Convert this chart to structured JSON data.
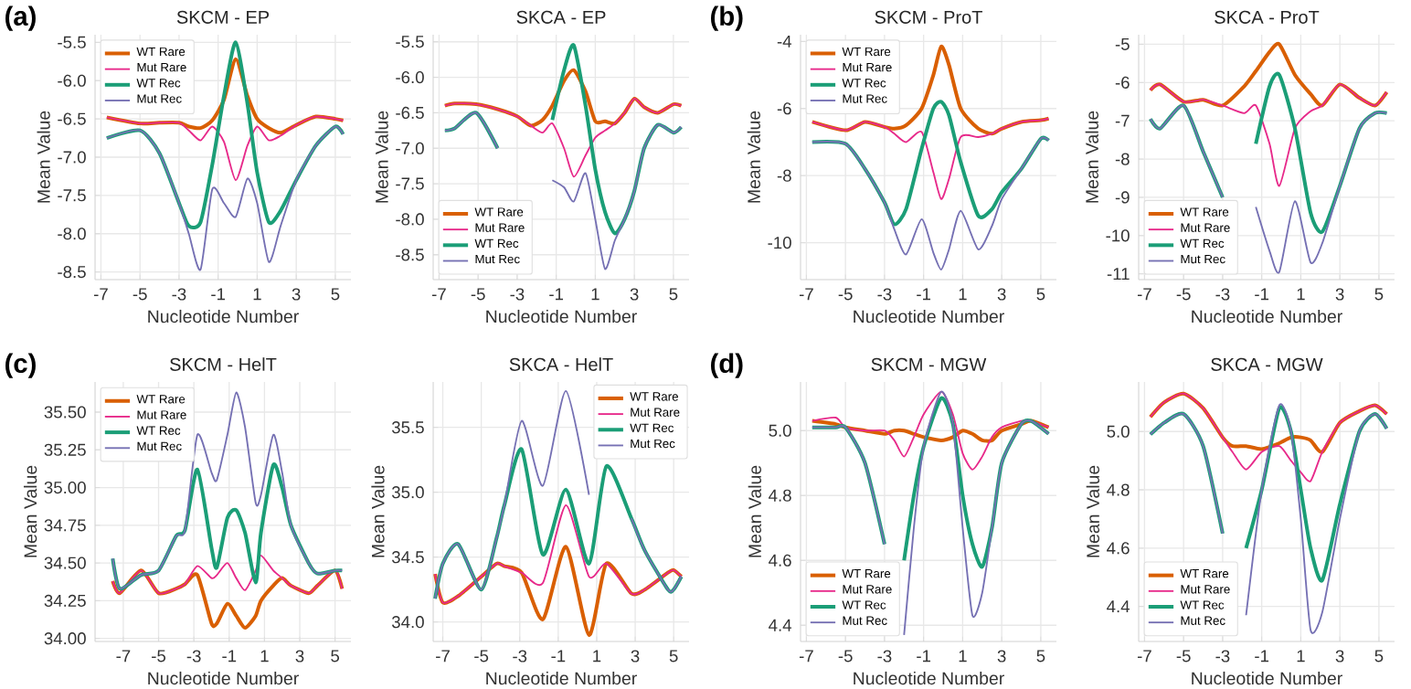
{
  "chart_data": [
    {
      "type": "line",
      "title": "SKCM - EP",
      "xlabel": "Nucleotide Number",
      "ylabel": "Mean Value",
      "annotations": [
        "(a)"
      ],
      "grid": true,
      "legend": "top left",
      "xlim": [
        -7.3,
        5.8
      ],
      "ylim": [
        -8.6,
        -5.4
      ],
      "xticks": [
        -7,
        -5,
        -3,
        -1,
        1,
        3,
        5
      ],
      "yticks": [
        -5.5,
        {
          "value": -6,
          "label": "-6.0"
        },
        -6.5,
        {
          "value": -7,
          "label": "-7.0"
        },
        -7.5,
        {
          "value": -8,
          "label": "-8.0"
        },
        -8.5
      ],
      "x": [
        -6.7,
        -5,
        -4,
        -3,
        -2.5,
        -1.9,
        -1.3,
        -0.7,
        -0.1,
        0.5,
        1,
        1.6,
        2.2,
        3,
        4,
        5,
        5.4
      ],
      "series": [
        {
          "name": "WT Rare",
          "color": "#d95f02",
          "values": [
            -6.48,
            -6.56,
            -6.55,
            -6.55,
            -6.6,
            -6.62,
            -6.52,
            -6.25,
            -5.72,
            -6.2,
            -6.5,
            -6.62,
            -6.68,
            -6.58,
            -6.47,
            -6.5,
            -6.52
          ]
        },
        {
          "name": "Mut Rare",
          "color": "#e7298a",
          "values": [
            -6.48,
            -6.56,
            -6.55,
            -6.55,
            -6.65,
            -6.78,
            -6.6,
            -6.8,
            -7.3,
            -6.85,
            -6.6,
            -6.78,
            -6.72,
            -6.58,
            -6.47,
            -6.5,
            -6.52
          ]
        },
        {
          "name": "WT Rec",
          "color": "#1b9e77",
          "values": [
            -6.75,
            -6.65,
            -6.95,
            -7.6,
            -7.9,
            -7.85,
            -7.1,
            -6.2,
            -5.5,
            -6.3,
            -7.2,
            -7.85,
            -7.7,
            -7.3,
            -6.85,
            -6.6,
            -6.7
          ]
        },
        {
          "name": "Mut Rec",
          "color": "#7570b3",
          "values": [
            -6.75,
            -6.65,
            -6.95,
            -7.6,
            -8.0,
            -8.47,
            -7.42,
            -7.6,
            -7.78,
            -7.28,
            -7.6,
            -8.37,
            -7.9,
            -7.3,
            -6.85,
            -6.6,
            -6.7
          ]
        }
      ]
    },
    {
      "type": "line",
      "title": "SKCA - EP",
      "xlabel": "Nucleotide Number",
      "ylabel": "Mean Value",
      "grid": true,
      "legend": "bottom left",
      "xlim": [
        -7.3,
        5.8
      ],
      "ylim": [
        -8.85,
        -5.4
      ],
      "xticks": [
        -7,
        -5,
        -3,
        -1,
        1,
        3,
        5
      ],
      "yticks": [
        -5.5,
        {
          "value": -6,
          "label": "-6.0"
        },
        -6.5,
        {
          "value": -7,
          "label": "-7.0"
        },
        -7.5,
        {
          "value": -8,
          "label": "-8.0"
        },
        -8.5
      ],
      "x": [
        -6.7,
        -6.2,
        -5.1,
        -4,
        -3,
        -2.3,
        -1.7,
        -1.2,
        -0.6,
        -0.1,
        0.5,
        1,
        1.5,
        2,
        2.5,
        3,
        3.5,
        4.2,
        5,
        5.4
      ],
      "series": [
        {
          "name": "WT Rare",
          "color": "#d95f02",
          "values": [
            -6.4,
            -6.37,
            -6.38,
            -6.45,
            -6.55,
            -6.68,
            -6.6,
            -6.4,
            -6.05,
            -5.9,
            -6.2,
            -6.62,
            -6.62,
            -6.65,
            -6.5,
            -6.3,
            -6.42,
            -6.5,
            -6.38,
            -6.4
          ]
        },
        {
          "name": "Mut Rare",
          "color": "#e7298a",
          "values": [
            -6.4,
            -6.37,
            -6.38,
            -6.45,
            -6.55,
            -6.68,
            -6.78,
            -6.65,
            -7.0,
            -7.4,
            -7.1,
            -6.85,
            -6.75,
            -6.65,
            -6.5,
            -6.3,
            -6.42,
            -6.5,
            -6.38,
            -6.4
          ]
        },
        {
          "name": "WT Rec",
          "color": "#1b9e77",
          "values": [
            -6.75,
            -6.72,
            -6.5,
            -7.0,
            null,
            null,
            null,
            -6.6,
            -5.9,
            -5.55,
            -6.4,
            -7.3,
            -7.9,
            -8.2,
            -8.0,
            -7.6,
            -7.0,
            -6.67,
            -6.78,
            -6.7
          ]
        },
        {
          "name": "Mut Rec",
          "color": "#7570b3",
          "values": [
            -6.75,
            -6.72,
            -6.5,
            -7.0,
            null,
            null,
            null,
            -7.45,
            -7.55,
            -7.75,
            -7.35,
            -8.0,
            -8.7,
            -8.3,
            -8.0,
            -7.6,
            -7.0,
            -6.67,
            -6.78,
            -6.7
          ]
        }
      ]
    },
    {
      "type": "line",
      "title": "SKCM - ProT",
      "xlabel": "Nucleotide Number",
      "ylabel": "Mean Value",
      "annotations": [
        "(b)"
      ],
      "grid": true,
      "legend": "top left",
      "xlim": [
        -7.3,
        5.8
      ],
      "ylim": [
        -11.1,
        -3.8
      ],
      "xticks": [
        -7,
        -5,
        -3,
        -1,
        1,
        3,
        5
      ],
      "yticks": [
        -4,
        -6,
        -8,
        -10
      ],
      "x": [
        -6.7,
        -5,
        -4,
        -3,
        -2.5,
        -1.9,
        -1.1,
        -0.5,
        -0.1,
        0.3,
        0.9,
        1.8,
        2.5,
        3,
        4,
        5,
        5.4
      ],
      "series": [
        {
          "name": "WT Rare",
          "color": "#d95f02",
          "values": [
            -6.4,
            -6.65,
            -6.4,
            -6.55,
            -6.6,
            -6.5,
            -6.0,
            -5.0,
            -4.15,
            -4.7,
            -6.0,
            -6.6,
            -6.75,
            -6.6,
            -6.4,
            -6.35,
            -6.3
          ]
        },
        {
          "name": "Mut Rare",
          "color": "#e7298a",
          "values": [
            -6.4,
            -6.65,
            -6.4,
            -6.55,
            -6.75,
            -7.0,
            -6.7,
            -7.9,
            -8.7,
            -8.1,
            -6.85,
            -6.85,
            -6.75,
            -6.6,
            -6.4,
            -6.35,
            -6.3
          ]
        },
        {
          "name": "WT Rec",
          "color": "#1b9e77",
          "values": [
            -7.0,
            -7.05,
            -7.8,
            -8.8,
            -9.45,
            -9.0,
            -7.2,
            -6.0,
            -5.8,
            -6.2,
            -7.6,
            -9.2,
            -9.0,
            -8.5,
            -7.8,
            -6.9,
            -6.95
          ]
        },
        {
          "name": "Mut Rec",
          "color": "#7570b3",
          "values": [
            -7.0,
            -7.05,
            -7.8,
            -8.8,
            -9.6,
            -10.35,
            -9.3,
            -10.3,
            -10.8,
            -10.2,
            -9.05,
            -10.2,
            -9.5,
            -8.7,
            -7.8,
            -6.9,
            -6.95
          ]
        }
      ]
    },
    {
      "type": "line",
      "title": "SKCA - ProT",
      "xlabel": "Nucleotide Number",
      "ylabel": "Mean Value",
      "grid": true,
      "legend": "bottom left",
      "xlim": [
        -7.3,
        5.8
      ],
      "ylim": [
        -11.15,
        -4.75
      ],
      "xticks": [
        -7,
        -5,
        -3,
        -1,
        1,
        3,
        5
      ],
      "yticks": [
        -5,
        -6,
        -7,
        -8,
        -9,
        -10,
        -11
      ],
      "x": [
        -6.7,
        -6.2,
        -5,
        -4,
        -3,
        -1.9,
        -1.3,
        -0.6,
        -0.1,
        0.7,
        1.5,
        2.1,
        3,
        4,
        4.8,
        5.4
      ],
      "series": [
        {
          "name": "WT Rare",
          "color": "#d95f02",
          "values": [
            -6.2,
            -6.05,
            -6.5,
            -6.45,
            -6.6,
            -6.1,
            -5.7,
            -5.2,
            -5.0,
            -5.8,
            -6.3,
            -6.6,
            -6.05,
            -6.4,
            -6.6,
            -6.25
          ]
        },
        {
          "name": "Mut Rare",
          "color": "#e7298a",
          "values": [
            -6.2,
            -6.05,
            -6.5,
            -6.45,
            -6.6,
            -6.8,
            -6.6,
            -7.6,
            -8.7,
            -7.2,
            -6.75,
            -6.6,
            -6.05,
            -6.4,
            -6.6,
            -6.25
          ]
        },
        {
          "name": "WT Rec",
          "color": "#1b9e77",
          "values": [
            -6.95,
            -7.2,
            -6.6,
            -7.8,
            -9.0,
            null,
            -7.6,
            -6.1,
            -5.8,
            -7.2,
            -9.4,
            -9.9,
            -8.7,
            -7.2,
            -6.8,
            -6.8
          ]
        },
        {
          "name": "Mut Rec",
          "color": "#7570b3",
          "values": [
            -6.95,
            -7.2,
            -6.6,
            -7.8,
            -9.0,
            null,
            -9.25,
            -10.4,
            -10.95,
            -9.1,
            -10.7,
            -10.2,
            -8.7,
            -7.2,
            -6.8,
            -6.8
          ]
        }
      ]
    },
    {
      "type": "line",
      "title": "SKCM - HelT",
      "xlabel": "Nucleotide Number",
      "ylabel": "Mean Value",
      "annotations": [
        "(c)"
      ],
      "grid": true,
      "legend": "top left",
      "xlim": [
        -8.6,
        5.9
      ],
      "ylim": [
        33.98,
        35.7
      ],
      "xticks": [
        -7,
        -5,
        -3,
        -1,
        1,
        3,
        5
      ],
      "yticks": [
        {
          "value": 34,
          "label": "34.00"
        },
        34.25,
        {
          "value": 34.5,
          "label": "34.50"
        },
        34.75,
        {
          "value": 35,
          "label": "35.00"
        },
        35.25,
        {
          "value": 35.5,
          "label": "35.50"
        }
      ],
      "x": [
        -7.6,
        -7.2,
        -6,
        -5,
        -4,
        -3.5,
        -2.8,
        -2,
        -1.7,
        -1.1,
        -0.6,
        -0.1,
        0.5,
        0.8,
        1.5,
        2,
        2.5,
        3.5,
        4,
        5,
        5.4
      ],
      "series": [
        {
          "name": "WT Rare",
          "color": "#d95f02",
          "values": [
            34.38,
            34.3,
            34.45,
            34.3,
            34.33,
            34.36,
            34.42,
            34.1,
            34.1,
            34.23,
            34.15,
            34.07,
            34.15,
            34.25,
            34.35,
            34.4,
            34.35,
            34.3,
            34.35,
            34.45,
            34.33
          ]
        },
        {
          "name": "Mut Rare",
          "color": "#e7298a",
          "values": [
            34.38,
            34.3,
            34.45,
            34.3,
            34.33,
            34.36,
            34.48,
            34.4,
            34.42,
            34.5,
            34.4,
            34.32,
            34.45,
            34.55,
            34.45,
            34.4,
            34.35,
            34.3,
            34.35,
            34.45,
            34.33
          ]
        },
        {
          "name": "WT Rec",
          "color": "#1b9e77",
          "values": [
            34.53,
            34.33,
            34.42,
            34.45,
            34.68,
            34.72,
            35.12,
            34.6,
            34.47,
            34.8,
            34.85,
            34.7,
            34.37,
            34.7,
            35.15,
            35.0,
            34.75,
            34.5,
            34.43,
            34.45,
            34.45
          ]
        },
        {
          "name": "Mut Rec",
          "color": "#7570b3",
          "values": [
            34.53,
            34.33,
            34.42,
            34.45,
            34.68,
            34.72,
            35.35,
            35.1,
            35.05,
            35.35,
            35.63,
            35.4,
            34.9,
            34.95,
            35.35,
            35.1,
            34.75,
            34.5,
            34.43,
            34.45,
            34.45
          ]
        }
      ]
    },
    {
      "type": "line",
      "title": "SKCA - HelT",
      "xlabel": "Nucleotide Number",
      "ylabel": "Mean Value",
      "grid": true,
      "legend": "top right",
      "xlim": [
        -7.5,
        5.8
      ],
      "ylim": [
        33.85,
        35.85
      ],
      "xticks": [
        -7,
        -5,
        -3,
        -1,
        1,
        3,
        5
      ],
      "yticks": [
        {
          "value": 34,
          "label": "34.0"
        },
        34.5,
        {
          "value": 35,
          "label": "35.0"
        },
        35.5
      ],
      "x": [
        -7.4,
        -7,
        -6.2,
        -5,
        -4.2,
        -3.8,
        -2.9,
        -1.8,
        -0.6,
        0.6,
        1.5,
        2.8,
        3.5,
        4.7,
        5,
        5.4
      ],
      "series": [
        {
          "name": "WT Rare",
          "color": "#d95f02",
          "values": [
            34.37,
            34.15,
            34.2,
            34.35,
            34.45,
            34.43,
            34.38,
            34.02,
            34.58,
            33.9,
            34.45,
            34.22,
            34.25,
            34.38,
            34.4,
            34.35
          ]
        },
        {
          "name": "Mut Rare",
          "color": "#e7298a",
          "values": [
            34.37,
            34.15,
            34.2,
            34.35,
            34.45,
            34.43,
            34.38,
            34.3,
            34.9,
            34.35,
            34.45,
            34.22,
            34.25,
            34.38,
            34.4,
            34.35
          ]
        },
        {
          "name": "WT Rec",
          "color": "#1b9e77",
          "values": [
            34.18,
            34.45,
            34.6,
            34.25,
            34.65,
            34.9,
            35.33,
            34.52,
            35.02,
            34.45,
            35.2,
            34.8,
            34.55,
            34.25,
            34.25,
            34.35
          ]
        },
        {
          "name": "Mut Rec",
          "color": "#7570b3",
          "values": [
            34.18,
            34.45,
            34.6,
            34.25,
            34.65,
            34.9,
            35.55,
            35.05,
            35.78,
            34.98,
            null,
            34.8,
            34.55,
            34.25,
            34.25,
            34.35
          ]
        }
      ]
    },
    {
      "type": "line",
      "title": "SKCM - MGW",
      "xlabel": "Nucleotide Number",
      "ylabel": "Mean Value",
      "annotations": [
        "(d)"
      ],
      "grid": true,
      "legend": "bottom left",
      "xlim": [
        -7.3,
        5.8
      ],
      "ylim": [
        4.35,
        5.15
      ],
      "xticks": [
        -7,
        -5,
        -3,
        -1,
        1,
        3,
        5
      ],
      "yticks": [
        4.4,
        4.6,
        4.8,
        {
          "value": 5,
          "label": "5.0"
        }
      ],
      "x": [
        -6.7,
        -5.5,
        -5,
        -4,
        -3,
        -2.5,
        -2,
        -1.5,
        -1,
        -0.1,
        0.5,
        1,
        1.5,
        2,
        2.5,
        3,
        4,
        4.5,
        5.4
      ],
      "series": [
        {
          "name": "WT Rare",
          "color": "#d95f02",
          "values": [
            5.03,
            5.02,
            5.01,
            5.0,
            4.99,
            5.0,
            5.0,
            4.99,
            4.98,
            4.97,
            4.98,
            5.0,
            4.99,
            4.97,
            4.97,
            5.0,
            5.02,
            5.03,
            5.01
          ]
        },
        {
          "name": "Mut Rare",
          "color": "#e7298a",
          "values": [
            5.03,
            5.04,
            5.01,
            5.0,
            5.0,
            4.97,
            4.92,
            4.98,
            5.05,
            5.12,
            5.05,
            4.93,
            4.88,
            4.92,
            4.98,
            5.01,
            5.03,
            5.03,
            5.01
          ]
        },
        {
          "name": "WT Rec",
          "color": "#1b9e77",
          "values": [
            5.01,
            5.01,
            5.01,
            4.9,
            4.65,
            null,
            4.6,
            4.8,
            4.95,
            5.1,
            5.02,
            4.8,
            4.65,
            4.58,
            4.7,
            4.9,
            5.02,
            5.03,
            4.99
          ]
        },
        {
          "name": "Mut Rec",
          "color": "#7570b3",
          "values": [
            5.01,
            5.01,
            5.01,
            4.9,
            4.65,
            null,
            4.37,
            4.7,
            4.95,
            5.12,
            5.02,
            4.7,
            4.43,
            4.5,
            4.7,
            4.9,
            5.02,
            5.03,
            4.99
          ]
        }
      ]
    },
    {
      "type": "line",
      "title": "SKCA - MGW",
      "xlabel": "Nucleotide Number",
      "ylabel": "Mean Value",
      "grid": true,
      "legend": "bottom left",
      "xlim": [
        -7.3,
        5.8
      ],
      "ylim": [
        4.28,
        5.17
      ],
      "xticks": [
        -7,
        -5,
        -3,
        -1,
        1,
        3,
        5
      ],
      "yticks": [
        4.4,
        4.6,
        4.8,
        {
          "value": 5,
          "label": "5.0"
        }
      ],
      "x": [
        -6.7,
        -6,
        -5,
        -4,
        -3,
        -2.5,
        -1.8,
        -1,
        -0.1,
        0.5,
        1,
        1.5,
        2.1,
        3,
        4,
        4.8,
        5.4
      ],
      "series": [
        {
          "name": "WT Rare",
          "color": "#d95f02",
          "values": [
            5.05,
            5.1,
            5.13,
            5.08,
            4.98,
            4.95,
            4.95,
            4.94,
            4.96,
            4.98,
            4.98,
            4.97,
            4.93,
            5.03,
            5.07,
            5.09,
            5.06
          ]
        },
        {
          "name": "Mut Rare",
          "color": "#e7298a",
          "values": [
            5.05,
            5.1,
            5.13,
            5.08,
            4.98,
            4.93,
            4.87,
            4.93,
            4.95,
            4.9,
            4.86,
            4.83,
            4.93,
            5.03,
            5.07,
            5.09,
            5.06
          ]
        },
        {
          "name": "WT Rec",
          "color": "#1b9e77",
          "values": [
            4.99,
            5.03,
            5.06,
            4.95,
            4.65,
            null,
            4.6,
            4.8,
            5.08,
            5.0,
            4.8,
            4.6,
            4.49,
            4.75,
            5.0,
            5.06,
            5.01
          ]
        },
        {
          "name": "Mut Rec",
          "color": "#7570b3",
          "values": [
            4.99,
            5.03,
            5.06,
            4.95,
            4.65,
            null,
            4.37,
            4.8,
            5.09,
            5.0,
            4.7,
            4.32,
            4.38,
            4.7,
            5.0,
            5.06,
            5.01
          ]
        }
      ]
    }
  ]
}
